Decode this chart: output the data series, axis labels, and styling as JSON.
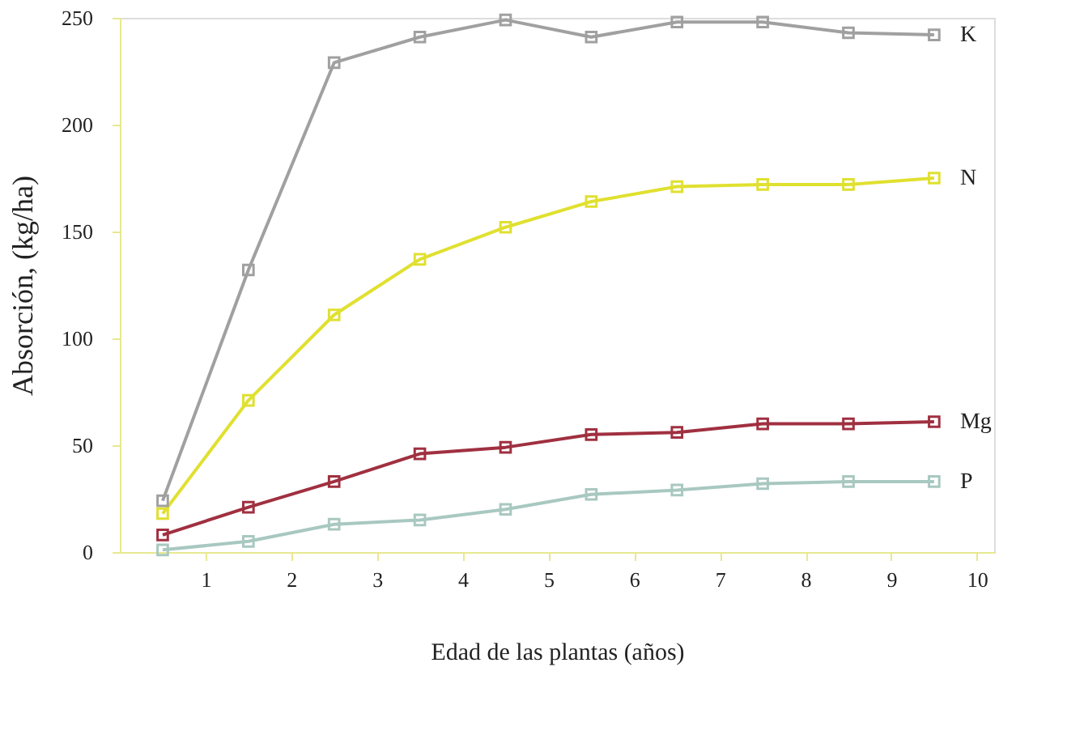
{
  "chart_data": {
    "type": "line",
    "xlabel": "Edad de las plantas (años)",
    "ylabel": "Absorción, (kg/ha)",
    "x": [
      0.5,
      1.5,
      2.5,
      3.5,
      4.5,
      5.5,
      6.5,
      7.5,
      8.5,
      9.5
    ],
    "series": [
      {
        "name": "K",
        "color": "#a0a0a0",
        "values": [
          24,
          132,
          229,
          241,
          249,
          241,
          248,
          248,
          243,
          242
        ]
      },
      {
        "name": "N",
        "color": "#e0e030",
        "values": [
          18,
          71,
          111,
          137,
          152,
          164,
          171,
          172,
          172,
          175
        ]
      },
      {
        "name": "Mg",
        "color": "#a03040",
        "values": [
          8,
          21,
          33,
          46,
          49,
          55,
          56,
          60,
          60,
          61
        ]
      },
      {
        "name": "P",
        "color": "#a8c8c0",
        "values": [
          1,
          5,
          13,
          15,
          20,
          27,
          29,
          32,
          33,
          33
        ]
      }
    ],
    "xlim": [
      0,
      10.2
    ],
    "xticks": [
      1,
      2,
      3,
      4,
      5,
      6,
      7,
      8,
      9,
      10
    ],
    "ylim": [
      0,
      250
    ],
    "yticks": [
      0,
      50,
      100,
      150,
      200,
      250
    ],
    "grid": false,
    "legend": false,
    "marker": "square",
    "line_style": "solid"
  }
}
